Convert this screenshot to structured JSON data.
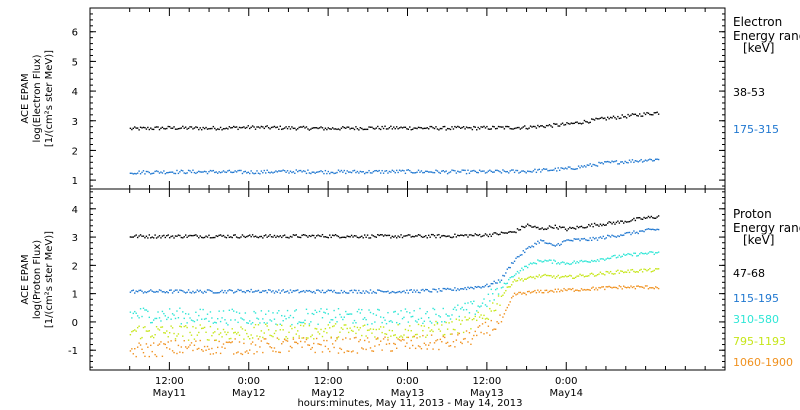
{
  "chart_data": [
    {
      "type": "scatter",
      "panel": "electron",
      "ylabel_lines": [
        "ACE EPAM",
        "log(Electron Flux)",
        "[1/(cm²s ster MeV)]"
      ],
      "ylim": [
        0.7,
        6.8
      ],
      "yticks": [
        1,
        2,
        3,
        4,
        5,
        6
      ],
      "legend_title_lines": [
        "Electron",
        "Energy range",
        "[keV]"
      ],
      "series": [
        {
          "name": "38-53",
          "color": "#000000",
          "x": [
            0,
            6,
            12,
            18,
            24,
            30,
            36,
            42,
            48,
            54,
            60,
            66,
            72,
            78,
            80
          ],
          "y": [
            2.75,
            2.78,
            2.77,
            2.8,
            2.78,
            2.76,
            2.78,
            2.78,
            2.77,
            2.78,
            2.8,
            2.9,
            3.1,
            3.25,
            3.3
          ]
        },
        {
          "name": "175-315",
          "color": "#1f77d0",
          "x": [
            0,
            6,
            12,
            18,
            24,
            30,
            36,
            42,
            48,
            54,
            60,
            66,
            72,
            78,
            80
          ],
          "y": [
            1.28,
            1.3,
            1.3,
            1.29,
            1.31,
            1.3,
            1.3,
            1.31,
            1.3,
            1.3,
            1.32,
            1.4,
            1.6,
            1.7,
            1.72
          ]
        }
      ]
    },
    {
      "type": "scatter",
      "panel": "proton",
      "ylabel_lines": [
        "ACE EPAM",
        "log(Proton Flux)",
        "[1/(cm²s ster MeV)]"
      ],
      "ylim": [
        -1.7,
        4.7
      ],
      "yticks": [
        -1,
        0,
        1,
        2,
        3,
        4
      ],
      "legend_title_lines": [
        "Proton",
        "Energy range",
        "[keV]"
      ],
      "series": [
        {
          "name": "47-68",
          "color": "#000000",
          "x": [
            0,
            6,
            12,
            18,
            24,
            30,
            36,
            42,
            48,
            54,
            58,
            60,
            62,
            64,
            66,
            70,
            74,
            78,
            80
          ],
          "y": [
            3.05,
            3.05,
            3.06,
            3.05,
            3.05,
            3.06,
            3.05,
            3.05,
            3.06,
            3.1,
            3.2,
            3.45,
            3.3,
            3.4,
            3.3,
            3.45,
            3.55,
            3.7,
            3.75
          ]
        },
        {
          "name": "115-195",
          "color": "#1f77d0",
          "x": [
            0,
            6,
            12,
            18,
            24,
            30,
            36,
            42,
            48,
            54,
            56,
            58,
            60,
            62,
            64,
            66,
            70,
            74,
            78,
            80
          ],
          "y": [
            1.1,
            1.1,
            1.1,
            1.12,
            1.1,
            1.1,
            1.1,
            1.1,
            1.15,
            1.3,
            1.5,
            2.2,
            2.6,
            2.9,
            2.7,
            2.9,
            2.95,
            3.1,
            3.25,
            3.3
          ]
        },
        {
          "name": "310-580",
          "color": "#2ee6d6",
          "x": [
            0,
            6,
            12,
            18,
            24,
            30,
            36,
            42,
            48,
            52,
            54,
            56,
            58,
            60,
            62,
            66,
            70,
            74,
            78,
            80
          ],
          "y": [
            0.3,
            0.25,
            0.2,
            0.2,
            0.2,
            0.22,
            0.2,
            0.22,
            0.3,
            0.5,
            0.8,
            1.2,
            1.7,
            2.0,
            2.2,
            2.1,
            2.2,
            2.35,
            2.45,
            2.45
          ]
        },
        {
          "name": "795-1193",
          "color": "#c6e619",
          "x": [
            0,
            6,
            12,
            18,
            24,
            30,
            36,
            42,
            48,
            52,
            54,
            56,
            58,
            60,
            62,
            66,
            70,
            74,
            78,
            80
          ],
          "y": [
            -0.3,
            -0.35,
            -0.35,
            -0.35,
            -0.32,
            -0.3,
            -0.3,
            -0.3,
            -0.2,
            0.0,
            0.3,
            0.9,
            1.5,
            1.55,
            1.65,
            1.6,
            1.7,
            1.8,
            1.85,
            1.85
          ]
        },
        {
          "name": "1060-1900",
          "color": "#f0911e",
          "x": [
            0,
            6,
            12,
            18,
            24,
            30,
            36,
            42,
            48,
            52,
            54,
            56,
            58,
            60,
            62,
            66,
            70,
            74,
            78,
            80
          ],
          "y": [
            -1.0,
            -0.9,
            -0.85,
            -0.85,
            -0.8,
            -0.8,
            -0.8,
            -0.75,
            -0.7,
            -0.5,
            -0.2,
            0.0,
            1.0,
            1.05,
            1.1,
            1.15,
            1.2,
            1.25,
            1.25,
            1.25
          ]
        }
      ]
    }
  ],
  "x_axis": {
    "xlim": [
      -6,
      90
    ],
    "ticks": [
      {
        "x": 6,
        "hour": "12:00",
        "day": "May11"
      },
      {
        "x": 18,
        "hour": "0:00",
        "day": "May12"
      },
      {
        "x": 30,
        "hour": "12:00",
        "day": "May12"
      },
      {
        "x": 42,
        "hour": "0:00",
        "day": "May13"
      },
      {
        "x": 54,
        "hour": "12:00",
        "day": "May13"
      },
      {
        "x": 66,
        "hour": "0:00",
        "day": "May14"
      }
    ],
    "minor_step": 3,
    "label": "hours:minutes, May 11, 2013 - May 14, 2013"
  }
}
